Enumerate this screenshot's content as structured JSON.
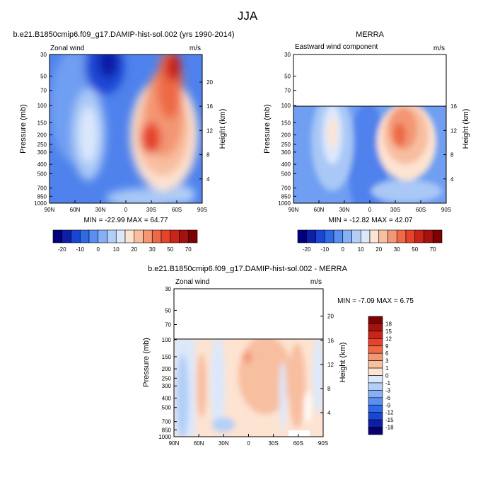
{
  "figure": {
    "title": "JJA"
  },
  "colors": {
    "blue_red": [
      "#00007f",
      "#0d1fa6",
      "#1a46d4",
      "#2f6ae6",
      "#5a8ef0",
      "#86b0f5",
      "#b3cff8",
      "#dbe8fb",
      "#fde3d2",
      "#f8bea0",
      "#f39673",
      "#ee6a46",
      "#e5432a",
      "#c9241a",
      "#a3120f",
      "#7f0000"
    ],
    "diff": [
      "#08006f",
      "#0d1fa6",
      "#1a46d4",
      "#2f6ae6",
      "#5a8ef0",
      "#86b0f5",
      "#b3cff8",
      "#dbe8fb",
      "#fde3d2",
      "#f8bea0",
      "#f39673",
      "#ee6a46",
      "#e5432a",
      "#c9241a",
      "#a3120f",
      "#7f0000"
    ]
  },
  "chart_data": [
    {
      "type": "heatmap",
      "id": "model",
      "title": "b.e21.B1850cmip6.f09_g17.DAMIP-hist-sol.002 (yrs 1990-2014)",
      "subtitle_left": "Zonal wind",
      "subtitle_right": "m/s",
      "ylabel": "Pressure (mb)",
      "ylabel_right": "Height (km)",
      "x_ticks": [
        "90N",
        "60N",
        "30N",
        "0",
        "30S",
        "60S",
        "90S"
      ],
      "y_ticks": [
        "30",
        "50",
        "70",
        "100",
        "150",
        "200",
        "250",
        "300",
        "400",
        "500",
        "700",
        "850",
        "1000"
      ],
      "height_ticks": [
        "20",
        "16",
        "12",
        "8",
        "4"
      ],
      "stats": "MIN = -22.99  MAX =  64.77",
      "colorbar_labels": [
        "-20",
        "-10",
        "0",
        "10",
        "20",
        "30",
        "50",
        "70"
      ]
    },
    {
      "type": "heatmap",
      "id": "obs",
      "title": "MERRA",
      "subtitle_left": "Eastward wind component",
      "subtitle_right": "m/s",
      "ylabel": "Pressure (mb)",
      "ylabel_right": "Height (km)",
      "x_ticks": [
        "90N",
        "60N",
        "30N",
        "0",
        "30S",
        "60S",
        "90S"
      ],
      "y_ticks": [
        "30",
        "50",
        "70",
        "100",
        "150",
        "200",
        "250",
        "300",
        "400",
        "500",
        "700",
        "850",
        "1000"
      ],
      "height_ticks": [
        "16",
        "12",
        "8",
        "4"
      ],
      "stats": "MIN = -12.82  MAX =  42.07",
      "colorbar_labels": [
        "-20",
        "-10",
        "0",
        "10",
        "20",
        "30",
        "50",
        "70"
      ]
    },
    {
      "type": "heatmap",
      "id": "diff",
      "title": "b.e21.B1850cmip6.f09_g17.DAMIP-hist-sol.002 - MERRA",
      "subtitle_left": "Zonal wind",
      "subtitle_right": "m/s",
      "ylabel": "Pressure (mb)",
      "ylabel_right": "Height (km)",
      "x_ticks": [
        "90N",
        "60N",
        "30N",
        "0",
        "30S",
        "60S",
        "90S"
      ],
      "y_ticks": [
        "30",
        "50",
        "70",
        "100",
        "150",
        "200",
        "250",
        "300",
        "400",
        "500",
        "700",
        "850",
        "1000"
      ],
      "height_ticks": [
        "20",
        "16",
        "12",
        "8",
        "4"
      ],
      "stats": "MIN =  -7.09  MAX =   6.75",
      "colorbar_labels": [
        "18",
        "15",
        "12",
        "9",
        "6",
        "3",
        "1",
        "0",
        "-1",
        "-3",
        "-6",
        "-9",
        "-12",
        "-15",
        "-18"
      ]
    }
  ]
}
